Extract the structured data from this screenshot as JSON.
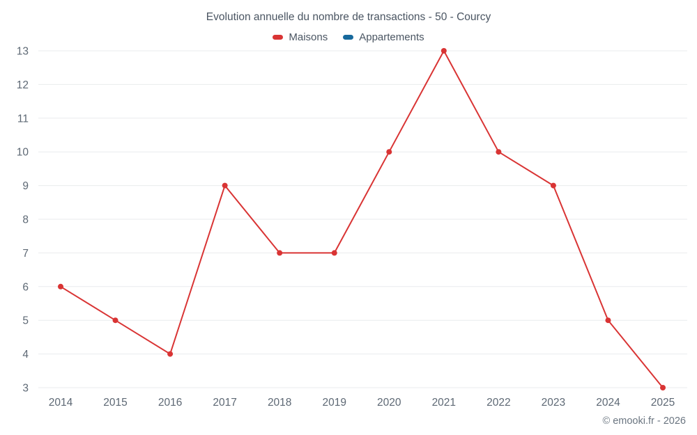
{
  "header": {
    "title": "Evolution annuelle du nombre de transactions - 50 - Courcy",
    "legend": [
      {
        "label": "Maisons",
        "color": "#d93434"
      },
      {
        "label": "Appartements",
        "color": "#17699c"
      }
    ]
  },
  "footer": {
    "credit": "© emooki.fr - 2026"
  },
  "chart_data": {
    "type": "line",
    "title": "Evolution annuelle du nombre de transactions - 50 - Courcy",
    "categories": [
      "2014",
      "2015",
      "2016",
      "2017",
      "2018",
      "2019",
      "2020",
      "2021",
      "2022",
      "2023",
      "2024",
      "2025"
    ],
    "series": [
      {
        "name": "Maisons",
        "color": "#d93434",
        "values": [
          6,
          5,
          4,
          9,
          7,
          7,
          10,
          13,
          10,
          9,
          5,
          3
        ]
      },
      {
        "name": "Appartements",
        "color": "#17699c",
        "values": []
      }
    ],
    "ylim": [
      3,
      13
    ],
    "yticks": [
      3,
      4,
      5,
      6,
      7,
      8,
      9,
      10,
      11,
      12,
      13
    ],
    "xlabel": "",
    "ylabel": "",
    "grid": "horizontal",
    "grid_color": "#e9ebed",
    "text_color": "#5d6874",
    "legend_position": "top",
    "point_radius": 4,
    "line_width": 2
  }
}
